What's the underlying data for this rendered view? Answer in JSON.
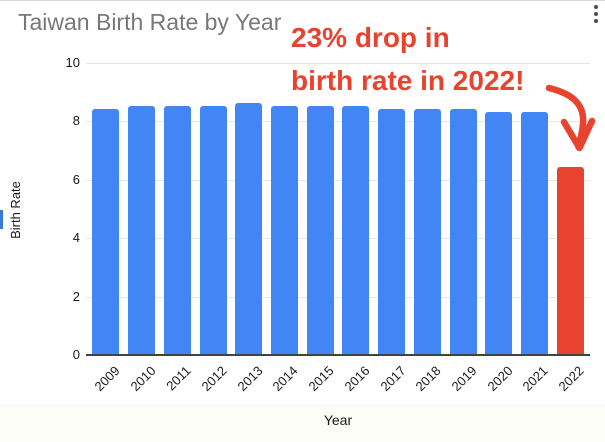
{
  "widget": {
    "menu_icon": "kebab-menu"
  },
  "chart_data": {
    "type": "bar",
    "title": "Taiwan Birth Rate by Year",
    "xlabel": "Year",
    "ylabel": "Birth Rate",
    "categories": [
      "2009",
      "2010",
      "2011",
      "2012",
      "2013",
      "2014",
      "2015",
      "2016",
      "2017",
      "2018",
      "2019",
      "2020",
      "2021",
      "2022"
    ],
    "values": [
      8.4,
      8.5,
      8.5,
      8.5,
      8.6,
      8.5,
      8.5,
      8.5,
      8.4,
      8.4,
      8.4,
      8.3,
      8.3,
      6.4
    ],
    "highlight_category": "2022",
    "highlight_index": 13,
    "ylim": [
      0,
      10
    ],
    "yticks": [
      0,
      2,
      4,
      6,
      8,
      10
    ],
    "grid": true,
    "legend_position": "none",
    "x_tick_rotation_deg": 45,
    "annotation": {
      "text_line1": "23% drop in",
      "text_line2": "birth rate in 2022!",
      "arrow_target": "2022 bar"
    },
    "colors": {
      "bar_blue": "#4285f4",
      "bar_highlight_red": "#e8432e",
      "annotation_red": "#e8432e",
      "title_gray": "#787878",
      "gridline": "#e6e6e6",
      "axis_line": "#424242",
      "tick_text": "#1a1a1a"
    }
  }
}
